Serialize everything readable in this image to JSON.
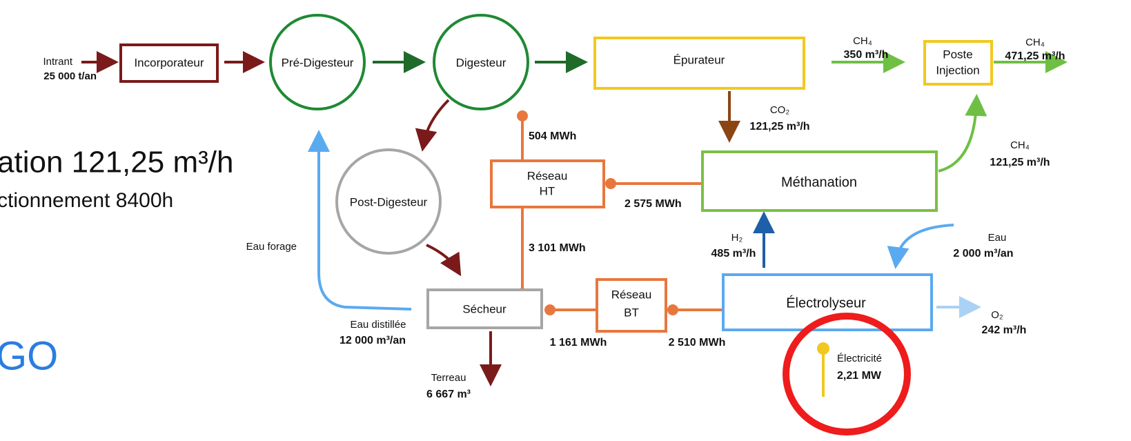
{
  "background_text": [
    "ation 121,25 m³/h",
    "ctionnement 8400h"
  ],
  "logo": "GO",
  "nodes": [
    {
      "label": "Incorporateur"
    },
    {
      "label": "Pré-Digesteur"
    },
    {
      "label": "Digesteur"
    },
    {
      "label": "Épurateur"
    },
    {
      "lines": [
        "Poste",
        "Injection"
      ]
    },
    {
      "label": "Post-Digesteur"
    },
    {
      "lines": [
        "Réseau",
        "HT"
      ]
    },
    {
      "label": "Méthanation"
    },
    {
      "label": "Sécheur"
    },
    {
      "lines": [
        "Réseau",
        "BT"
      ]
    },
    {
      "label": "Électrolyseur"
    }
  ],
  "flows": [
    {
      "label": "Intrant",
      "amount": "25 000 t/an"
    },
    {
      "label": "CH₄",
      "amount": "350 m³/h"
    },
    {
      "label": "CH₄",
      "amount": "471,25 m³/h"
    },
    {
      "label": "CO₂",
      "amount": "121,25 m³/h"
    },
    {
      "label": "CH₄",
      "amount": "121,25 m³/h"
    },
    {
      "amount": "504 MWh"
    },
    {
      "amount": "2 575 MWh"
    },
    {
      "amount": "3 101 MWh"
    },
    {
      "label": "Eau forage"
    },
    {
      "label": "Eau distillée",
      "amount": "12 000 m³/an"
    },
    {
      "label": "Terreau",
      "amount": "6 667 m³"
    },
    {
      "amount": "1 161 MWh"
    },
    {
      "amount": "2 510 MWh"
    },
    {
      "label": "H₂",
      "amount": "485 m³/h"
    },
    {
      "label": "Eau",
      "amount": "2 000 m³/an"
    },
    {
      "label": "O₂",
      "amount": "242 m³/h"
    },
    {
      "label": "Électricité",
      "amount": "2,21 MW"
    }
  ]
}
